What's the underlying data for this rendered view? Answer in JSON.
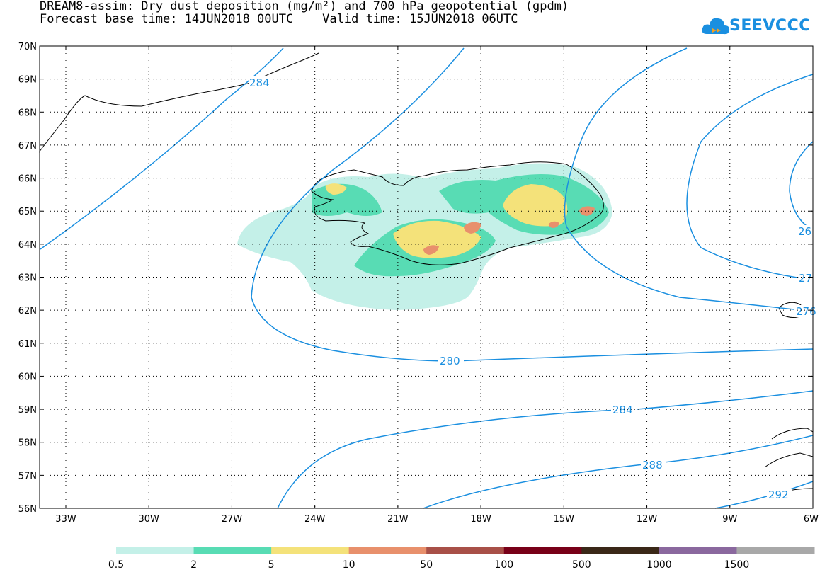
{
  "title": {
    "line1": "DREAM8-assim: Dry dust deposition (mg/m²) and 700 hPa geopotential (gpdm)",
    "line2": "Forecast base time: 14JUN2018 00UTC    Valid time: 15JUN2018 06UTC"
  },
  "logo": {
    "text": "SEEVCCC",
    "icon": "cloud-icon"
  },
  "map": {
    "lat_labels": [
      "70N",
      "69N",
      "68N",
      "67N",
      "66N",
      "65N",
      "64N",
      "63N",
      "62N",
      "61N",
      "60N",
      "59N",
      "58N",
      "57N",
      "56N"
    ],
    "lon_labels": [
      "33W",
      "30W",
      "27W",
      "24W",
      "21W",
      "18W",
      "15W",
      "12W",
      "9W",
      "6W"
    ],
    "contour_labels": [
      "280",
      "284",
      "288",
      "292",
      "284",
      "276",
      "27",
      "26"
    ]
  },
  "colorbar": {
    "labels": [
      "0.5",
      "2",
      "5",
      "10",
      "50",
      "100",
      "500",
      "1000",
      "1500"
    ],
    "colors": [
      "#c4f0e8",
      "#58dcb4",
      "#f4e27a",
      "#e8906c",
      "#a85048",
      "#780018",
      "#3a2818",
      "#8a689e",
      "#a8a8a8"
    ]
  },
  "colors": {
    "contour": "#1a8fe0",
    "coast": "#000000"
  }
}
